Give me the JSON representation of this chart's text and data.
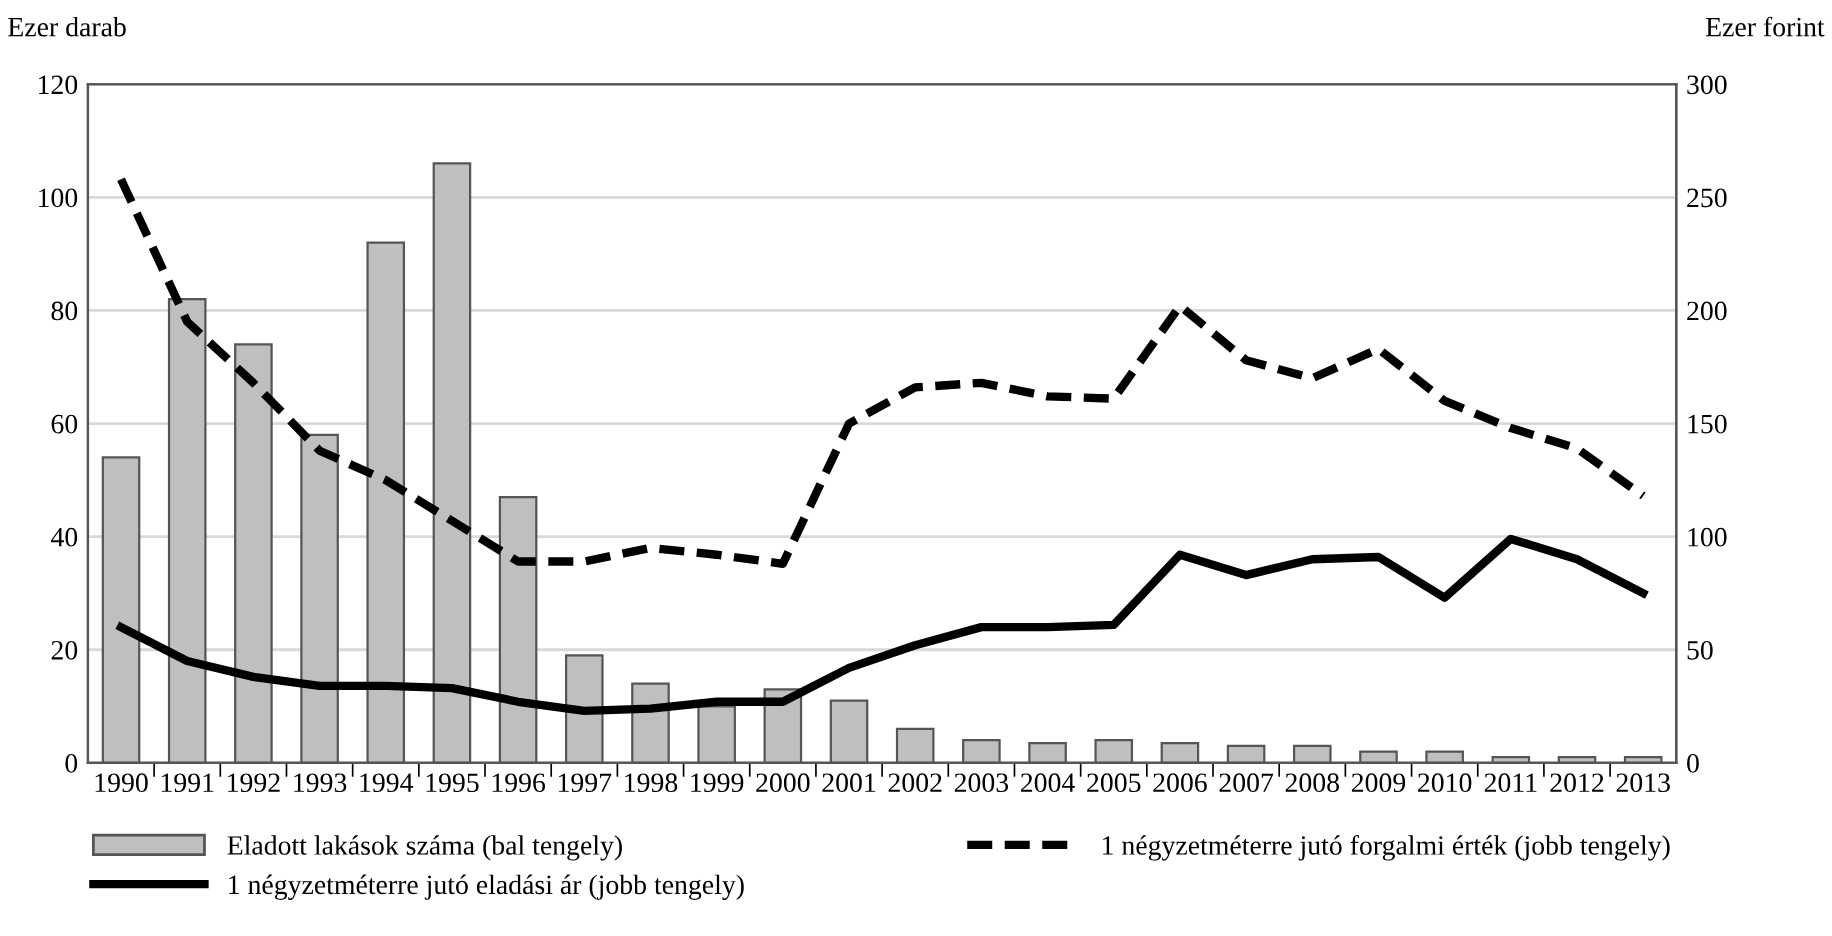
{
  "chart_data": {
    "type": "bar",
    "ylabel": "Ezer darab",
    "y2label": "Ezer forint",
    "categories": [
      "1990",
      "1991",
      "1992",
      "1993",
      "1994",
      "1995",
      "1996",
      "1997",
      "1998",
      "1999",
      "2000",
      "2001",
      "2002",
      "2003",
      "2004",
      "2005",
      "2006",
      "2007",
      "2008",
      "2009",
      "2010",
      "2011",
      "2012",
      "2013"
    ],
    "series": [
      {
        "name": "Eladott lakások száma (bal tengely)",
        "color": "#bfbfbf",
        "values": [
          54,
          82,
          74,
          58,
          92,
          106,
          47,
          19,
          14,
          10,
          13,
          11,
          6,
          4,
          3.5,
          4,
          3.5,
          3,
          3,
          2,
          2,
          1,
          1,
          1
        ]
      },
      {
        "name": "1 négyzetméterre jutó eladási ár (jobb tengely)",
        "type": "line",
        "axis": "y2",
        "color": "#000000",
        "line_style": "solid",
        "values": [
          60,
          45,
          38,
          34,
          34,
          33,
          27,
          23,
          24,
          27,
          27,
          42,
          52,
          60,
          60,
          61,
          92,
          83,
          90,
          91,
          73,
          99,
          90,
          75
        ]
      },
      {
        "name": "1 négyzetméterre jutó forgalmi érték (jobb tengely)",
        "type": "line",
        "axis": "y2",
        "color": "#000000",
        "line_style": "dashed",
        "values": [
          258,
          195,
          168,
          138,
          125,
          107,
          89,
          89,
          95,
          92,
          88,
          150,
          166,
          168,
          162,
          161,
          202,
          178,
          170,
          183,
          160,
          148,
          139,
          118
        ]
      }
    ],
    "ylim": [
      0,
      120
    ],
    "yticks": [
      0,
      20,
      40,
      60,
      80,
      100,
      120
    ],
    "y2lim": [
      0,
      300
    ],
    "y2ticks": [
      0,
      50,
      100,
      150,
      200,
      250,
      300
    ],
    "grid": "y",
    "legend": "bottom",
    "marker": "none"
  }
}
